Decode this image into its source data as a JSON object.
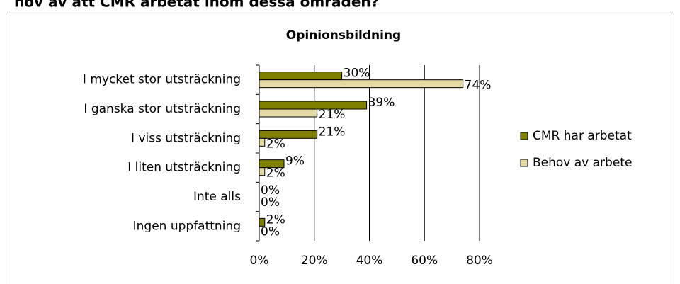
{
  "heading": "hov av att CMR arbetat inom dessa områden?",
  "chart_data": {
    "type": "hbar",
    "title": "Opinionsbildning",
    "categories": [
      "I mycket stor utsträckning",
      "I ganska stor utsträckning",
      "I viss utsträckning",
      "I liten utsträckning",
      "Inte alls",
      "Ingen uppfattning"
    ],
    "series": [
      {
        "name": "CMR har arbetat",
        "color": "#808000",
        "values": [
          30,
          39,
          21,
          9,
          0,
          2
        ],
        "value_labels": [
          "30%",
          "39%",
          "21%",
          "9%",
          "0%",
          "2%"
        ]
      },
      {
        "name": "Behov av arbete",
        "color": "#e3d9a2",
        "values": [
          74,
          21,
          2,
          2,
          0,
          0
        ],
        "value_labels": [
          "74%",
          "21%",
          "2%",
          "2%",
          "0%",
          "0%"
        ]
      }
    ],
    "xlim": [
      0,
      80
    ],
    "xticks": [
      {
        "value": 0,
        "label": "0%"
      },
      {
        "value": 20,
        "label": "20%"
      },
      {
        "value": 40,
        "label": "40%"
      },
      {
        "value": 60,
        "label": "60%"
      },
      {
        "value": 80,
        "label": "80%"
      }
    ],
    "grid": true,
    "legend": "right"
  }
}
